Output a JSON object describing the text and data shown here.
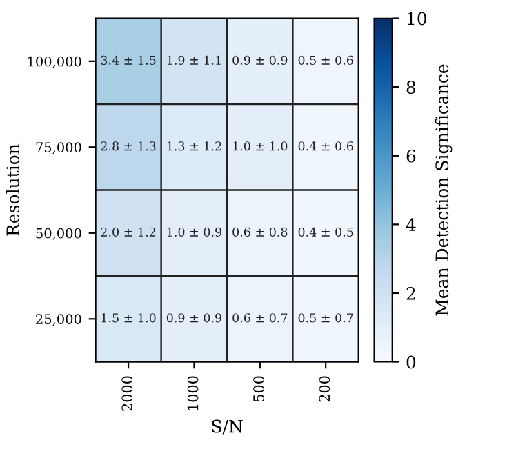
{
  "chart_data": {
    "type": "heatmap",
    "xlabel": "S/N",
    "ylabel": "Resolution",
    "clabel": "Mean Detection Significance",
    "categories": [
      "2000",
      "1000",
      "500",
      "200"
    ],
    "y_categories": [
      "100,000",
      "75,000",
      "50,000",
      "25,000"
    ],
    "cells": [
      [
        3.4,
        1.9,
        0.9,
        0.5
      ],
      [
        2.8,
        1.3,
        1.0,
        0.4
      ],
      [
        2.0,
        1.0,
        0.6,
        0.4
      ],
      [
        1.5,
        0.9,
        0.6,
        0.5
      ]
    ],
    "cell_labels": [
      [
        "3.4 ± 1.5",
        "1.9 ± 1.1",
        "0.9 ± 0.9",
        "0.5 ± 0.6"
      ],
      [
        "2.8 ± 1.3",
        "1.3 ± 1.2",
        "1.0 ± 1.0",
        "0.4 ± 0.6"
      ],
      [
        "2.0 ± 1.2",
        "1.0 ± 0.9",
        "0.6 ± 0.8",
        "0.4 ± 0.5"
      ],
      [
        "1.5 ± 1.0",
        "0.9 ± 0.9",
        "0.6 ± 0.7",
        "0.5 ± 0.7"
      ]
    ],
    "clim": [
      0,
      10
    ],
    "cticks": [
      0,
      2,
      4,
      6,
      8,
      10
    ]
  }
}
